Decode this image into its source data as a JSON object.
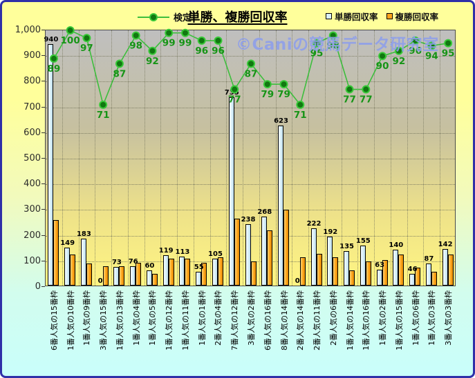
{
  "title": "単勝、複勝回収率",
  "watermark": "©Caniの競馬データ研究室",
  "legend": {
    "line_label": "検定",
    "bar1_label": "単勝回収率",
    "bar2_label": "複勝回収率"
  },
  "colors": {
    "line": "#3cbe3c",
    "marker_fill": "#117811",
    "marker_stroke": "#39c939",
    "line_label": "#169416",
    "bar_win_fill": "#d9f0f9",
    "bar_place_fill": "#ffa41c",
    "frame_border": "#2f2fa8"
  },
  "chart_data": {
    "type": "bar",
    "title": "単勝、複勝回収率",
    "categories": [
      "6番人気の15番枠",
      "1番人気の10番枠",
      "1番人気の9番枠",
      "3番人気の15番枠",
      "1番人気の13番枠",
      "1番人気の4番枠",
      "1番人気の5番枠",
      "1番人気の12番枠",
      "1番人気の11番枠",
      "1番人気の1番枠",
      "2番人気の4番枠",
      "7番人気の12番枠",
      "3番人気の2番枠",
      "6番人気の16番枠",
      "8番人気の14番枠",
      "2番人気の14番枠",
      "2番人気の11番枠",
      "2番人気の6番枠",
      "1番人気の14番枠",
      "1番人気の16番枠",
      "1番人気の2番枠",
      "1番人気の15番枠",
      "1番人気の6番枠",
      "1番人気の3番枠",
      "3番人気の3番枠"
    ],
    "series": [
      {
        "name": "単勝回収率",
        "type": "bar",
        "color": "#d9f0f9",
        "values": [
          940,
          149,
          183,
          0,
          73,
          76,
          60,
          119,
          113,
          55,
          105,
          735,
          238,
          268,
          623,
          0,
          222,
          192,
          135,
          155,
          63,
          140,
          46,
          87,
          142
        ],
        "labeled": true
      },
      {
        "name": "複勝回収率",
        "type": "bar",
        "color": "#ffa41c",
        "values": [
          255,
          120,
          85,
          75,
          75,
          90,
          45,
          105,
          105,
          90,
          110,
          260,
          95,
          215,
          295,
          110,
          125,
          110,
          60,
          95,
          100,
          120,
          70,
          55,
          120
        ],
        "labeled": false
      },
      {
        "name": "検定",
        "type": "line",
        "color": "#3cbe3c",
        "value_scale": 10,
        "values": [
          89,
          100,
          97,
          71,
          87,
          98,
          92,
          99,
          99,
          96,
          96,
          77,
          87,
          79,
          79,
          71,
          95,
          98,
          77,
          77,
          90,
          92,
          96,
          94,
          95
        ]
      }
    ],
    "ylim": [
      0,
      1000
    ],
    "ytick_labels": [
      "1,000",
      "900",
      "800",
      "700",
      "600",
      "500",
      "400",
      "300",
      "200",
      "100",
      "0"
    ],
    "grid": true,
    "legend_position": "top"
  }
}
